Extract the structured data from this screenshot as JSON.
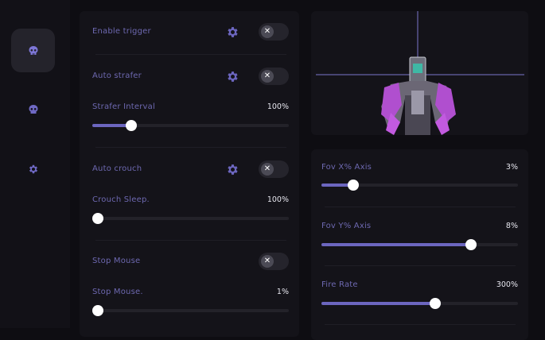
{
  "colors": {
    "accent": "#6c66bf",
    "background": "#0e0d12",
    "panel": "#141319"
  },
  "sidebar": {
    "items": [
      {
        "icon": "skull-icon",
        "active": true
      },
      {
        "icon": "skull-icon",
        "active": false
      },
      {
        "icon": "gear-icon",
        "active": false
      }
    ]
  },
  "left_panel": {
    "enable_trigger": {
      "label": "Enable trigger",
      "enabled": false
    },
    "auto_strafer": {
      "label": "Auto strafer",
      "enabled": false
    },
    "strafer_interval": {
      "label": "Strafer Interval",
      "value": "100%",
      "level": 0.2
    },
    "auto_crouch": {
      "label": "Auto crouch",
      "enabled": false
    },
    "crouch_sleep": {
      "label": "Crouch Sleep.",
      "value": "100%",
      "level": 0
    },
    "stop_mouse": {
      "label": "Stop Mouse",
      "enabled": false
    },
    "stop_mouse_slider": {
      "label": "Stop Mouse.",
      "value": "1%",
      "level": 0
    }
  },
  "right_panel": {
    "fov_x": {
      "label": "Fov X% Axis",
      "value": "3%",
      "level": 0.16
    },
    "fov_y": {
      "label": "Fov Y% Axis",
      "value": "8%",
      "level": 0.76
    },
    "fire_rate": {
      "label": "Fire Rate",
      "value": "300%",
      "level": 0.58
    }
  },
  "toggle_off_glyph": "✕"
}
